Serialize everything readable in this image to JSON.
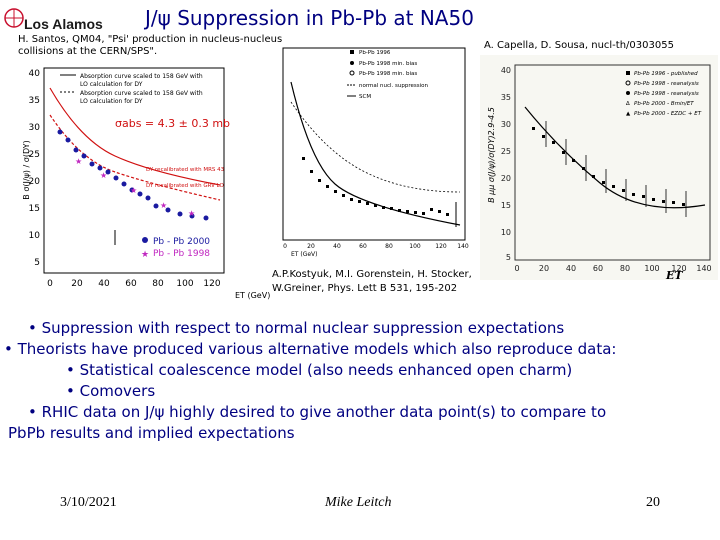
{
  "slide": {
    "logo_text": "Los Alamos",
    "title": "J/ψ Suppression in Pb-Pb at NA50",
    "ref_left": "H. Santos, QM04, \"Psi' production in nucleus-nucleus collisions at the CERN/SPS\".",
    "ref_right": "A. Capella, D. Sousa, nucl-th/0303055",
    "ref_mid": "A.P.Kostyuk, M.I. Gorenstein, H. Stocker, W.Greiner, Phys. Lett B 531, 195-202"
  },
  "bullets": {
    "b1": "• Suppression with respect to normal nuclear suppression expectations",
    "b2": "• Theorists have produced various alternative models which also reproduce data:",
    "b2a": "• Statistical coalescence model (also needs enhanced open charm)",
    "b2b": "• Comovers",
    "b3": "• RHIC data on J/ψ highly desired to give another data point(s) to compare to",
    "b3cont": "PbPb results and implied expectations"
  },
  "footer": {
    "date": "3/10/2021",
    "author": "Mike Leitch",
    "page": "20"
  },
  "plot_left": {
    "legend": [
      "Absorption curve scaled to 158 GeV with",
      "LO calculation for DY",
      "Absorption curve scaled to 158 GeV with",
      "LO calculation for DY"
    ],
    "sigma": "σabs = 4.3 ± 0.3 mb",
    "curve1": "DY recalibrated with MRS 43",
    "curve2": "DY recalibrated with GRV LO",
    "series": [
      "Pb - Pb 2000",
      "Pb - Pb 1998"
    ],
    "xticks": [
      "0",
      "20",
      "40",
      "60",
      "80",
      "100",
      "120"
    ],
    "yticks": [
      "40",
      "35",
      "30",
      "25",
      "20",
      "15",
      "10",
      "5"
    ],
    "xlabel": "ET (GeV)",
    "ylabel": "B σ(J/ψ) / σ(DY)"
  },
  "plot_mid": {
    "legend": [
      "Pb-Pb 1996",
      "Pb-Pb 1998 min. bias",
      "Pb-Pb 1998 min. bias",
      "normal nucl. suppression",
      "SCM"
    ],
    "xticks": [
      "0",
      "20",
      "40",
      "60",
      "80",
      "100",
      "120",
      "140"
    ],
    "xlabel": "ET (GeV)"
  },
  "plot_right": {
    "legend": [
      "Pb-Pb 1996 - published",
      "Pb-Pb 1998 - reanalysis",
      "Pb-Pb 1998 - reanalysis",
      "Pb-Pb 2000 - Bmin/ET",
      "Pb-Pb 2000 - EZDC + ET"
    ],
    "xticks": [
      "0",
      "20",
      "40",
      "60",
      "80",
      "100",
      "120",
      "140"
    ],
    "yticks": [
      "40",
      "35",
      "30",
      "25",
      "20",
      "15",
      "10",
      "5"
    ],
    "xlabel": "ET",
    "ylabel": "B μμ σ(J/ψ)/σ(DY)2.9-4.5"
  },
  "colors": {
    "title": "#000080",
    "bullets": "#000080",
    "logo_red": "#c8102e"
  }
}
